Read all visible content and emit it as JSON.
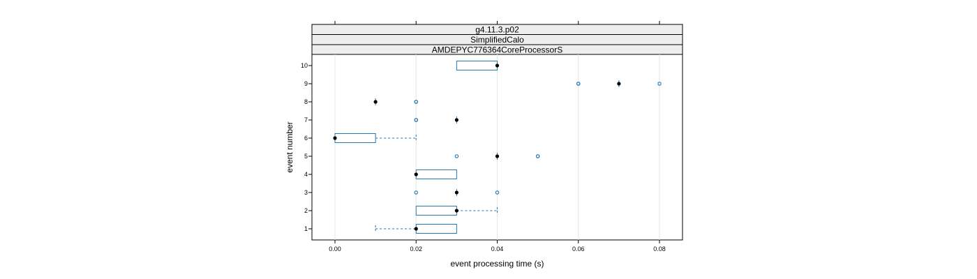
{
  "chart_data": {
    "type": "boxplot",
    "strips": [
      "g4.11.3.p02",
      "SimplifiedCalo",
      "AMDEPYC776364CoreProcessorS"
    ],
    "xlabel": "event processing time (s)",
    "ylabel": "event number",
    "xlim": [
      -0.0055,
      0.0855
    ],
    "x_ticks": [
      0.0,
      0.02,
      0.04,
      0.06,
      0.08
    ],
    "x_tick_labels": [
      "0.00",
      "0.02",
      "0.04",
      "0.06",
      "0.08"
    ],
    "y_categories": [
      "1",
      "2",
      "3",
      "4",
      "5",
      "6",
      "7",
      "8",
      "9",
      "10"
    ],
    "grid": "vertical",
    "box_color": "#1f77b4",
    "median_color": "#000000",
    "boxes": [
      {
        "event": "1",
        "whisker_low": 0.01,
        "q1": 0.02,
        "median": 0.02,
        "q3": 0.03,
        "whisker_high": 0.03,
        "outliers": []
      },
      {
        "event": "2",
        "whisker_low": 0.02,
        "q1": 0.02,
        "median": 0.03,
        "q3": 0.03,
        "whisker_high": 0.04,
        "outliers": []
      },
      {
        "event": "3",
        "whisker_low": 0.03,
        "q1": 0.03,
        "median": 0.03,
        "q3": 0.03,
        "whisker_high": 0.03,
        "outliers": [
          0.02,
          0.04
        ]
      },
      {
        "event": "4",
        "whisker_low": 0.02,
        "q1": 0.02,
        "median": 0.02,
        "q3": 0.03,
        "whisker_high": 0.03,
        "outliers": []
      },
      {
        "event": "5",
        "whisker_low": 0.04,
        "q1": 0.04,
        "median": 0.04,
        "q3": 0.04,
        "whisker_high": 0.04,
        "outliers": [
          0.03,
          0.05,
          0.05
        ]
      },
      {
        "event": "6",
        "whisker_low": 0.0,
        "q1": 0.0,
        "median": 0.0,
        "q3": 0.01,
        "whisker_high": 0.02,
        "outliers": []
      },
      {
        "event": "7",
        "whisker_low": 0.03,
        "q1": 0.03,
        "median": 0.03,
        "q3": 0.03,
        "whisker_high": 0.03,
        "outliers": [
          0.02,
          0.02
        ]
      },
      {
        "event": "8",
        "whisker_low": 0.01,
        "q1": 0.01,
        "median": 0.01,
        "q3": 0.01,
        "whisker_high": 0.01,
        "outliers": [
          0.02,
          0.02
        ]
      },
      {
        "event": "9",
        "whisker_low": 0.07,
        "q1": 0.07,
        "median": 0.07,
        "q3": 0.07,
        "whisker_high": 0.07,
        "outliers": [
          0.06,
          0.06,
          0.08
        ]
      },
      {
        "event": "10",
        "whisker_low": 0.03,
        "q1": 0.03,
        "median": 0.04,
        "q3": 0.04,
        "whisker_high": 0.04,
        "outliers": []
      }
    ]
  }
}
